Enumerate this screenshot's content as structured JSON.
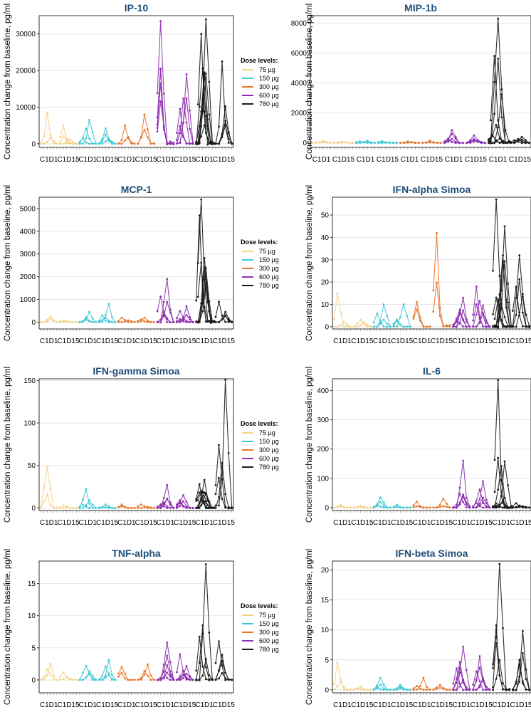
{
  "figure_ylabel": "Concentration change from baseline, pg/ml",
  "legend": {
    "title": "Dose levels:",
    "entries": [
      {
        "label": "75 µg",
        "color": "#f6d38a"
      },
      {
        "label": "150 µg",
        "color": "#3fc9d6"
      },
      {
        "label": "300 µg",
        "color": "#e8762a"
      },
      {
        "label": "600 µg",
        "color": "#8e30b0"
      },
      {
        "label": "780 µg",
        "color": "#1a1a1a"
      }
    ]
  },
  "x_category_labels": [
    "C1D1",
    "C1D15",
    "C1D1",
    "C1D15",
    "C1D1",
    "C1D15",
    "C1D1",
    "C1D15",
    "C1D1",
    "C1D15"
  ],
  "chart_data": [
    {
      "type": "line",
      "title": "IP-10",
      "ylabel": "Concentration change from baseline, pg/ml",
      "ylim": [
        -1000,
        35000
      ],
      "yticks": [
        0,
        10000,
        20000,
        30000
      ],
      "series": [
        {
          "name": "75 µg",
          "peaks": [
            8500,
            5000,
            1200
          ]
        },
        {
          "name": "150 µg",
          "peaks": [
            6500,
            4200
          ]
        },
        {
          "name": "300 µg",
          "peaks": [
            5000,
            8000
          ]
        },
        {
          "name": "600 µg",
          "peaks": [
            33500,
            19000
          ]
        },
        {
          "name": "780 µg",
          "peaks": [
            34000,
            30000,
            22500
          ]
        }
      ]
    },
    {
      "type": "line",
      "title": "MIP-1b",
      "ylabel": "Concentration change from baseline, pg/ml",
      "ylim": [
        -300,
        8500
      ],
      "yticks": [
        0,
        2000,
        4000,
        6000,
        8000
      ],
      "series": [
        {
          "name": "75 µg",
          "peaks": [
            150,
            80
          ]
        },
        {
          "name": "150 µg",
          "peaks": [
            150,
            120
          ]
        },
        {
          "name": "300 µg",
          "peaks": [
            100,
            150
          ]
        },
        {
          "name": "600 µg",
          "peaks": [
            850,
            500
          ]
        },
        {
          "name": "780 µg",
          "peaks": [
            1200,
            8300,
            400
          ]
        }
      ]
    },
    {
      "type": "line",
      "title": "MCP-1",
      "ylabel": "Concentration change from baseline, pg/ml",
      "ylim": [
        -300,
        5500
      ],
      "yticks": [
        0,
        1000,
        2000,
        3000,
        4000,
        5000
      ],
      "series": [
        {
          "name": "75 µg",
          "peaks": [
            250,
            80
          ]
        },
        {
          "name": "150 µg",
          "peaks": [
            450,
            800
          ]
        },
        {
          "name": "300 µg",
          "peaks": [
            200,
            200
          ]
        },
        {
          "name": "600 µg",
          "peaks": [
            1900,
            700
          ]
        },
        {
          "name": "780 µg",
          "peaks": [
            4700,
            5400,
            900
          ]
        }
      ]
    },
    {
      "type": "line",
      "title": "IFN-alpha Simoa",
      "ylabel": "Concentration change from baseline, pg/ml",
      "ylim": [
        -1,
        58
      ],
      "yticks": [
        0,
        10,
        20,
        30,
        40,
        50
      ],
      "series": [
        {
          "name": "75 µg",
          "peaks": [
            15,
            3
          ]
        },
        {
          "name": "150 µg",
          "peaks": [
            10,
            10
          ]
        },
        {
          "name": "300 µg",
          "peaks": [
            11,
            42
          ]
        },
        {
          "name": "600 µg",
          "peaks": [
            13,
            18
          ]
        },
        {
          "name": "780 µg",
          "peaks": [
            57,
            45,
            32
          ]
        }
      ]
    },
    {
      "type": "line",
      "title": "IFN-gamma Simoa",
      "ylabel": "Concentration change from baseline, pg/ml",
      "ylim": [
        -3,
        152
      ],
      "yticks": [
        0,
        50,
        100,
        150
      ],
      "series": [
        {
          "name": "75 µg",
          "peaks": [
            48,
            3
          ]
        },
        {
          "name": "150 µg",
          "peaks": [
            22,
            4
          ]
        },
        {
          "name": "300 µg",
          "peaks": [
            4,
            4
          ]
        },
        {
          "name": "600 µg",
          "peaks": [
            27,
            15
          ]
        },
        {
          "name": "780 µg",
          "peaks": [
            28,
            33,
            151
          ]
        }
      ]
    },
    {
      "type": "line",
      "title": "IL-6",
      "ylabel": "Concentration change from baseline, pg/ml",
      "ylim": [
        -10,
        440
      ],
      "yticks": [
        0,
        100,
        200,
        300,
        400
      ],
      "series": [
        {
          "name": "75 µg",
          "peaks": [
            10,
            5
          ]
        },
        {
          "name": "150 µg",
          "peaks": [
            35,
            10
          ]
        },
        {
          "name": "300 µg",
          "peaks": [
            20,
            30
          ]
        },
        {
          "name": "600 µg",
          "peaks": [
            160,
            90
          ]
        },
        {
          "name": "780 µg",
          "peaks": [
            25,
            435,
            15
          ]
        }
      ]
    },
    {
      "type": "line",
      "title": "TNF-alpha",
      "ylabel": "Concentration change from baseline, pg/ml",
      "ylim": [
        -2,
        18.5
      ],
      "yticks": [
        0,
        5,
        10,
        15
      ],
      "series": [
        {
          "name": "75 µg",
          "peaks": [
            2.5,
            1.2
          ]
        },
        {
          "name": "150 µg",
          "peaks": [
            2.2,
            3.1
          ]
        },
        {
          "name": "300 µg",
          "peaks": [
            2.0,
            2.4
          ]
        },
        {
          "name": "600 µg",
          "peaks": [
            5.8,
            4.0
          ]
        },
        {
          "name": "780 µg",
          "peaks": [
            18,
            6.0
          ]
        }
      ]
    },
    {
      "type": "line",
      "title": "IFN-beta Simoa",
      "ylabel": "Concentration change from baseline, pg/ml",
      "ylim": [
        -0.5,
        21.5
      ],
      "yticks": [
        0,
        5,
        10,
        15,
        20
      ],
      "series": [
        {
          "name": "75 µg",
          "peaks": [
            4.5,
            0.5
          ]
        },
        {
          "name": "150 µg",
          "peaks": [
            2.0,
            0.8
          ]
        },
        {
          "name": "300 µg",
          "peaks": [
            2.0,
            0.8
          ]
        },
        {
          "name": "600 µg",
          "peaks": [
            7.2,
            5.6
          ]
        },
        {
          "name": "780 µg",
          "peaks": [
            21,
            9.8
          ]
        }
      ]
    }
  ]
}
